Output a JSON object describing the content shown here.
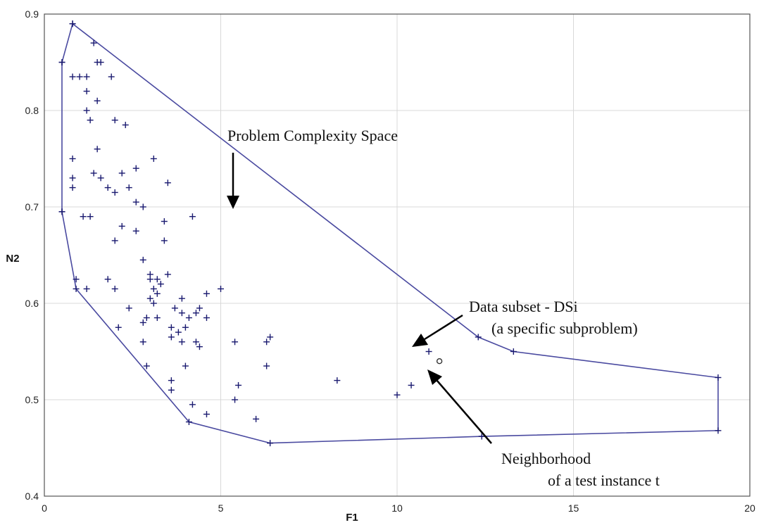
{
  "chart_data": {
    "type": "scatter",
    "title": "",
    "xlabel": "F1",
    "ylabel": "N2",
    "xlim": [
      0,
      20
    ],
    "ylim": [
      0.4,
      0.9
    ],
    "x_ticks": [
      0,
      5,
      10,
      15,
      20
    ],
    "y_ticks": [
      0.4,
      0.5,
      0.6,
      0.7,
      0.8,
      0.9
    ],
    "x_tick_labels": [
      "0",
      "5",
      "10",
      "15",
      "20"
    ],
    "y_tick_labels": [
      "0.4",
      "0.5",
      "0.6",
      "0.7",
      "0.8",
      "0.9"
    ],
    "grid": true,
    "legend": "none",
    "colors": {
      "points": "#1a1a70",
      "hull": "#4a4aa0",
      "annotation": "#000000"
    },
    "points": [
      [
        0.8,
        0.89
      ],
      [
        1.4,
        0.87
      ],
      [
        0.5,
        0.85
      ],
      [
        1.5,
        0.85
      ],
      [
        1.6,
        0.85
      ],
      [
        0.8,
        0.835
      ],
      [
        1.2,
        0.835
      ],
      [
        1.0,
        0.835
      ],
      [
        1.9,
        0.835
      ],
      [
        1.2,
        0.82
      ],
      [
        1.5,
        0.81
      ],
      [
        1.3,
        0.79
      ],
      [
        2.0,
        0.79
      ],
      [
        2.3,
        0.785
      ],
      [
        1.2,
        0.8
      ],
      [
        1.5,
        0.76
      ],
      [
        0.8,
        0.75
      ],
      [
        3.1,
        0.75
      ],
      [
        2.6,
        0.74
      ],
      [
        1.4,
        0.735
      ],
      [
        2.2,
        0.735
      ],
      [
        0.8,
        0.73
      ],
      [
        1.6,
        0.73
      ],
      [
        2.4,
        0.72
      ],
      [
        3.5,
        0.725
      ],
      [
        0.8,
        0.72
      ],
      [
        1.8,
        0.72
      ],
      [
        2.0,
        0.715
      ],
      [
        2.6,
        0.705
      ],
      [
        2.8,
        0.7
      ],
      [
        0.5,
        0.695
      ],
      [
        4.2,
        0.69
      ],
      [
        1.1,
        0.69
      ],
      [
        1.3,
        0.69
      ],
      [
        3.4,
        0.685
      ],
      [
        2.2,
        0.68
      ],
      [
        2.6,
        0.675
      ],
      [
        3.4,
        0.665
      ],
      [
        2.0,
        0.665
      ],
      [
        2.8,
        0.645
      ],
      [
        3.0,
        0.63
      ],
      [
        3.5,
        0.63
      ],
      [
        3.2,
        0.625
      ],
      [
        3.0,
        0.625
      ],
      [
        3.3,
        0.62
      ],
      [
        0.9,
        0.625
      ],
      [
        1.8,
        0.625
      ],
      [
        3.1,
        0.615
      ],
      [
        3.2,
        0.61
      ],
      [
        3.0,
        0.605
      ],
      [
        5.0,
        0.615
      ],
      [
        1.2,
        0.615
      ],
      [
        2.0,
        0.615
      ],
      [
        4.6,
        0.61
      ],
      [
        3.1,
        0.6
      ],
      [
        3.9,
        0.605
      ],
      [
        3.7,
        0.595
      ],
      [
        3.9,
        0.59
      ],
      [
        4.3,
        0.59
      ],
      [
        4.1,
        0.585
      ],
      [
        4.4,
        0.595
      ],
      [
        4.6,
        0.585
      ],
      [
        2.4,
        0.595
      ],
      [
        2.9,
        0.585
      ],
      [
        3.2,
        0.585
      ],
      [
        2.8,
        0.58
      ],
      [
        3.6,
        0.575
      ],
      [
        4.0,
        0.575
      ],
      [
        2.1,
        0.575
      ],
      [
        3.8,
        0.57
      ],
      [
        3.6,
        0.565
      ],
      [
        4.3,
        0.56
      ],
      [
        4.4,
        0.555
      ],
      [
        2.8,
        0.56
      ],
      [
        3.9,
        0.56
      ],
      [
        5.4,
        0.56
      ],
      [
        6.4,
        0.565
      ],
      [
        6.3,
        0.56
      ],
      [
        4.0,
        0.535
      ],
      [
        2.9,
        0.535
      ],
      [
        6.3,
        0.535
      ],
      [
        3.6,
        0.52
      ],
      [
        8.3,
        0.52
      ],
      [
        10.4,
        0.515
      ],
      [
        5.5,
        0.515
      ],
      [
        3.6,
        0.51
      ],
      [
        10.0,
        0.505
      ],
      [
        5.4,
        0.5
      ],
      [
        4.2,
        0.495
      ],
      [
        4.6,
        0.485
      ],
      [
        6.0,
        0.48
      ],
      [
        10.9,
        0.55
      ]
    ],
    "hull": [
      [
        0.8,
        0.89
      ],
      [
        12.3,
        0.565
      ],
      [
        13.3,
        0.55
      ],
      [
        19.1,
        0.523
      ],
      [
        19.1,
        0.468
      ],
      [
        12.4,
        0.462
      ],
      [
        6.4,
        0.455
      ],
      [
        4.1,
        0.477
      ],
      [
        0.9,
        0.615
      ],
      [
        0.5,
        0.695
      ],
      [
        0.5,
        0.85
      ]
    ],
    "test_instance": [
      11.2,
      0.54
    ],
    "annotations": [
      {
        "label": "Problem Complexity Space",
        "lines": [
          "Problem Complexity Space"
        ]
      },
      {
        "label": "Data subset - DSi",
        "lines": [
          "Data subset - DSi",
          "(a specific subproblem)"
        ]
      },
      {
        "label": "Neighborhood of a test instance t",
        "lines": [
          "Neighborhood",
          "of a test instance t"
        ]
      }
    ]
  }
}
